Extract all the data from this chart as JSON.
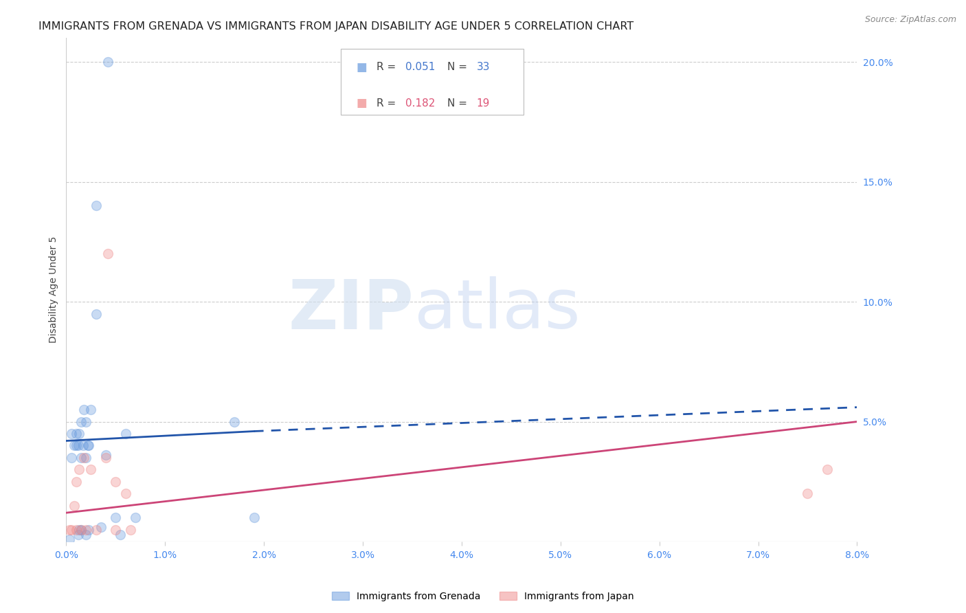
{
  "title": "IMMIGRANTS FROM GRENADA VS IMMIGRANTS FROM JAPAN DISABILITY AGE UNDER 5 CORRELATION CHART",
  "source": "Source: ZipAtlas.com",
  "ylabel": "Disability Age Under 5",
  "xlim": [
    0.0,
    0.08
  ],
  "ylim": [
    0.0,
    0.21
  ],
  "xticks": [
    0.0,
    0.01,
    0.02,
    0.03,
    0.04,
    0.05,
    0.06,
    0.07,
    0.08
  ],
  "xtick_labels": [
    "0.0%",
    "1.0%",
    "2.0%",
    "3.0%",
    "4.0%",
    "5.0%",
    "6.0%",
    "7.0%",
    "8.0%"
  ],
  "yticks_right": [
    0.05,
    0.1,
    0.15,
    0.2
  ],
  "ytick_labels_right": [
    "5.0%",
    "10.0%",
    "15.0%",
    "20.0%"
  ],
  "grid_color": "#cccccc",
  "background_color": "#ffffff",
  "title_color": "#222222",
  "axis_tick_color": "#4488ee",
  "legend_R1": "R = 0.051",
  "legend_N1": "N = 33",
  "legend_R2": "R = 0.182",
  "legend_N2": "N = 19",
  "color_grenada": "#6699dd",
  "color_japan": "#ee8888",
  "color_trendline_grenada": "#2255aa",
  "color_trendline_japan": "#cc4477",
  "grenada_x": [
    0.0003,
    0.0005,
    0.0005,
    0.0008,
    0.001,
    0.001,
    0.0012,
    0.0012,
    0.0013,
    0.0013,
    0.0015,
    0.0015,
    0.0015,
    0.0017,
    0.0018,
    0.002,
    0.002,
    0.002,
    0.0022,
    0.0023,
    0.0023,
    0.0025,
    0.003,
    0.003,
    0.0035,
    0.004,
    0.0042,
    0.005,
    0.0055,
    0.006,
    0.007,
    0.017,
    0.019
  ],
  "grenada_y": [
    0.001,
    0.035,
    0.045,
    0.04,
    0.04,
    0.045,
    0.003,
    0.04,
    0.005,
    0.045,
    0.005,
    0.035,
    0.05,
    0.04,
    0.055,
    0.003,
    0.035,
    0.05,
    0.04,
    0.005,
    0.04,
    0.055,
    0.095,
    0.14,
    0.006,
    0.036,
    0.2,
    0.01,
    0.003,
    0.045,
    0.01,
    0.05,
    0.01
  ],
  "japan_x": [
    0.0003,
    0.0005,
    0.0008,
    0.001,
    0.001,
    0.0013,
    0.0015,
    0.0018,
    0.002,
    0.0025,
    0.003,
    0.004,
    0.0042,
    0.005,
    0.005,
    0.006,
    0.0065,
    0.075,
    0.077
  ],
  "japan_y": [
    0.005,
    0.005,
    0.015,
    0.005,
    0.025,
    0.03,
    0.005,
    0.035,
    0.005,
    0.03,
    0.005,
    0.035,
    0.12,
    0.005,
    0.025,
    0.02,
    0.005,
    0.02,
    0.03
  ],
  "trendline_grenada_x0": 0.0,
  "trendline_grenada_y0": 0.042,
  "trendline_grenada_x1": 0.019,
  "trendline_grenada_y1": 0.046,
  "trendline_grenada_dash_x0": 0.019,
  "trendline_grenada_dash_y0": 0.046,
  "trendline_grenada_x2": 0.08,
  "trendline_grenada_y2": 0.056,
  "trendline_japan_x0": 0.0,
  "trendline_japan_y0": 0.012,
  "trendline_japan_x1": 0.08,
  "trendline_japan_y1": 0.05,
  "watermark_zip": "ZIP",
  "watermark_atlas": "atlas",
  "title_fontsize": 11.5,
  "axis_label_fontsize": 10,
  "tick_fontsize": 10,
  "marker_size": 100,
  "marker_alpha": 0.35,
  "legend_value_color_blue": "#4477cc",
  "legend_value_color_pink": "#dd5577"
}
